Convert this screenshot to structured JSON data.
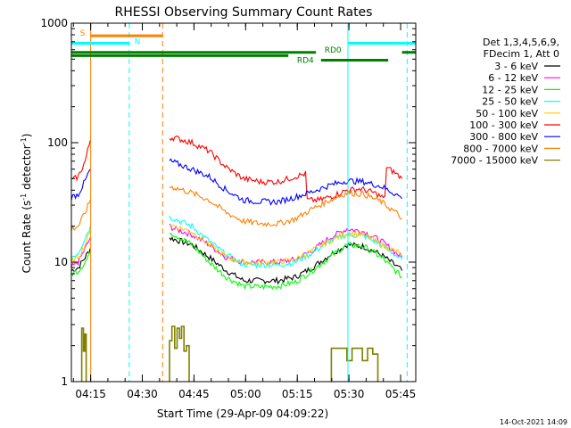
{
  "chart_data": {
    "type": "line",
    "title": "RHESSI Observing Summary Count Rates",
    "ylabel_main": "Count Rate (s",
    "ylabel_sup1": "-1",
    "ylabel_mid": " detector",
    "ylabel_sup2": "-1",
    "ylabel_end": ")",
    "xlabel": "Start Time (29-Apr-09 04:09:22)",
    "yscale": "log",
    "ylim": [
      1,
      1000
    ],
    "xlim_minutes": [
      0,
      100
    ],
    "x_ticks": [
      {
        "label": "04:15",
        "value": 5.6
      },
      {
        "label": "04:30",
        "value": 20.6
      },
      {
        "label": "04:45",
        "value": 35.6
      },
      {
        "label": "05:00",
        "value": 50.6
      },
      {
        "label": "05:15",
        "value": 65.6
      },
      {
        "label": "05:30",
        "value": 80.6
      },
      {
        "label": "05:45",
        "value": 95.6
      }
    ],
    "y_ticks": [
      {
        "label": "1",
        "value": 1
      },
      {
        "label": "10",
        "value": 10
      },
      {
        "label": "100",
        "value": 100
      },
      {
        "label": "1000",
        "value": 1000
      }
    ],
    "legend_header": [
      "Det 1,3,4,5,6,9,",
      "FDecim 1, Att 0"
    ],
    "legend_placement": "right",
    "series": [
      {
        "name": "3 - 6 keV",
        "color": "#000000",
        "segments": [
          {
            "x": [
              0,
              2,
              4,
              5.5
            ],
            "y": [
              8.5,
              9,
              11,
              13
            ]
          },
          {
            "x": [
              28.5,
              30,
              35,
              40,
              45,
              50,
              55,
              60,
              65,
              70,
              75,
              80,
              85,
              90,
              95,
              96
            ],
            "y": [
              16,
              15.5,
              14,
              11,
              8.5,
              7,
              7,
              7,
              7.5,
              9,
              11.5,
              14,
              13.5,
              11.5,
              9,
              8.5
            ]
          }
        ]
      },
      {
        "name": "6 - 12 keV",
        "color": "#ff00ff",
        "segments": [
          {
            "x": [
              0,
              2,
              4,
              5.5
            ],
            "y": [
              9,
              10,
              13,
              16
            ]
          },
          {
            "x": [
              28.5,
              30,
              35,
              40,
              45,
              50,
              55,
              60,
              65,
              70,
              75,
              80,
              85,
              90,
              95,
              96
            ],
            "y": [
              20,
              19,
              17,
              14,
              11,
              10,
              10,
              10,
              10.5,
              12.5,
              16,
              19,
              18,
              15,
              11.5,
              11
            ]
          }
        ]
      },
      {
        "name": "12 - 25 keV",
        "color": "#00ff00",
        "segments": [
          {
            "x": [
              0,
              2,
              4,
              5.5
            ],
            "y": [
              8,
              8.5,
              10,
              12
            ]
          },
          {
            "x": [
              28.5,
              30,
              35,
              40,
              45,
              50,
              55,
              60,
              65,
              70,
              75,
              80,
              85,
              90,
              95,
              96
            ],
            "y": [
              18,
              17,
              14,
              10,
              7.5,
              6.3,
              6.2,
              6.3,
              6.8,
              8.5,
              11,
              14,
              13.5,
              11,
              8,
              7.5
            ]
          }
        ]
      },
      {
        "name": "25 - 50 keV",
        "color": "#00ffff",
        "segments": [
          {
            "x": [
              0,
              2,
              4,
              5.5
            ],
            "y": [
              11,
              12,
              16,
              20
            ]
          },
          {
            "x": [
              28.5,
              30,
              35,
              40,
              45,
              50,
              55,
              60,
              65,
              70,
              75,
              80,
              85,
              90,
              95,
              96
            ],
            "y": [
              24,
              23,
              20,
              15,
              11.5,
              9.5,
              9.5,
              9.5,
              10,
              12,
              15,
              17,
              16.5,
              14,
              11,
              10.5
            ]
          }
        ]
      },
      {
        "name": "50 - 100 keV",
        "color": "#ffcc00",
        "segments": [
          {
            "x": [
              0,
              2,
              4,
              5.5
            ],
            "y": [
              10,
              11,
              14,
              18
            ]
          },
          {
            "x": [
              28.5,
              30,
              35,
              40,
              45,
              50,
              55,
              60,
              65,
              70,
              75,
              80,
              85,
              90,
              95,
              96
            ],
            "y": [
              21,
              20,
              18,
              14,
              11,
              10,
              10,
              10,
              10.5,
              12.5,
              15,
              17.5,
              17,
              14,
              12,
              11.5
            ]
          }
        ]
      },
      {
        "name": "100 - 300 keV",
        "color": "#ff0000",
        "segments": [
          {
            "x": [
              0,
              2,
              4,
              5.5
            ],
            "y": [
              48,
              52,
              70,
              105
            ]
          },
          {
            "x": [
              28.5,
              30,
              35,
              40,
              45,
              50,
              55,
              60,
              65,
              68,
              68.5,
              72,
              76,
              80,
              84,
              88,
              91,
              91.5,
              94,
              96
            ],
            "y": [
              110,
              110,
              100,
              85,
              62,
              50,
              47,
              47,
              52,
              55,
              33,
              33,
              36,
              40,
              41,
              38,
              34,
              62,
              56,
              50
            ]
          }
        ]
      },
      {
        "name": "300 - 800 keV",
        "color": "#0000ff",
        "segments": [
          {
            "x": [
              0,
              2,
              4,
              5.5
            ],
            "y": [
              35,
              37,
              48,
              60
            ]
          },
          {
            "x": [
              28.5,
              30,
              35,
              40,
              45,
              50,
              55,
              60,
              65,
              70,
              75,
              80,
              85,
              90,
              95,
              96
            ],
            "y": [
              70,
              68,
              60,
              52,
              40,
              33,
              32,
              32,
              35,
              39,
              44,
              48,
              47,
              43,
              36,
              34
            ]
          }
        ]
      },
      {
        "name": "800 - 7000 keV",
        "color": "#ff8000",
        "segments": [
          {
            "x": [
              0,
              2,
              4,
              5.5
            ],
            "y": [
              19,
              20,
              26,
              33
            ]
          },
          {
            "x": [
              28.5,
              30,
              35,
              40,
              45,
              50,
              55,
              60,
              65,
              70,
              75,
              80,
              85,
              90,
              95,
              96
            ],
            "y": [
              43,
              42,
              38,
              33,
              26,
              22,
              21,
              21,
              23,
              28,
              33,
              38,
              37,
              32,
              25,
              23
            ]
          }
        ]
      },
      {
        "name": "7000 - 15000 keV",
        "color": "#808000",
        "segments": [
          {
            "x": [
              3.0,
              3.0,
              3.5,
              3.5,
              3.9,
              3.9,
              4.3,
              4.3
            ],
            "y": [
              1,
              2.8,
              2.8,
              1.8,
              1.8,
              2.5,
              2.5,
              1
            ]
          },
          {
            "x": [
              28.5,
              28.5,
              29.2,
              29.2,
              30.0,
              30.0,
              30.7,
              30.7,
              31.4,
              31.4,
              32.0,
              32.0,
              32.7,
              32.7,
              33.4,
              33.4,
              34.2,
              34.2
            ],
            "y": [
              1,
              2.2,
              2.2,
              2.9,
              2.9,
              1.9,
              1.9,
              2.8,
              2.8,
              2.3,
              2.3,
              2.9,
              2.9,
              1.8,
              1.8,
              2.0,
              2.0,
              1
            ]
          },
          {
            "x": [
              75.5,
              75.5,
              77.0,
              77.0,
              78.5,
              78.5,
              80.0,
              80.0,
              81.5,
              81.5,
              83.0,
              83.0,
              84.5,
              84.5,
              86.0,
              86.0,
              87.5,
              87.5,
              89.0,
              89.0
            ],
            "y": [
              1,
              1.9,
              1.9,
              1.9,
              1.9,
              1.9,
              1.9,
              1.5,
              1.5,
              1.9,
              1.9,
              1.9,
              1.9,
              1.5,
              1.5,
              1.9,
              1.9,
              1.7,
              1.7,
              1
            ]
          }
        ]
      }
    ],
    "annotations": {
      "vlines": [
        {
          "x": 5.6,
          "color": "#ff8000",
          "style": "solid"
        },
        {
          "x": 16.8,
          "color": "#00ffff",
          "style": "dashed"
        },
        {
          "x": 26.5,
          "color": "#ff8000",
          "style": "dashed"
        },
        {
          "x": 80.3,
          "color": "#00ffff",
          "style": "solid"
        },
        {
          "x": 97.5,
          "color": "#00ffff",
          "style": "dashed"
        }
      ],
      "hbars": [
        {
          "label": "S",
          "color": "#ff8000",
          "x1": 5.6,
          "x2": 26.5,
          "y": 785,
          "label_x": 2.5,
          "label_y": 830
        },
        {
          "label": "N",
          "color": "#00ffff",
          "x1": 0,
          "x2": 16.8,
          "y": 680,
          "label_x": 18.3,
          "label_y": 705
        },
        {
          "label": "N",
          "color": "#00ffff",
          "x1": 80.3,
          "x2": 100,
          "y": 680
        },
        {
          "label": "RD0",
          "color": "#008000",
          "x1": 0,
          "x2": 71.0,
          "y": 570,
          "label_x": 73.5,
          "label_y": 595
        },
        {
          "label": "RD0",
          "color": "#008000",
          "x1": 96.0,
          "x2": 100,
          "y": 570
        },
        {
          "label": "RD4",
          "color": "#008000",
          "x1": 0,
          "x2": 63.0,
          "y": 535
        },
        {
          "label": "RD4",
          "color": "#008000",
          "x1": 72.5,
          "x2": 92.0,
          "y": 490,
          "label_x": 65.5,
          "label_y": 490
        }
      ]
    }
  },
  "footer": {
    "date_stamp": "14-Oct-2021 14:09"
  }
}
